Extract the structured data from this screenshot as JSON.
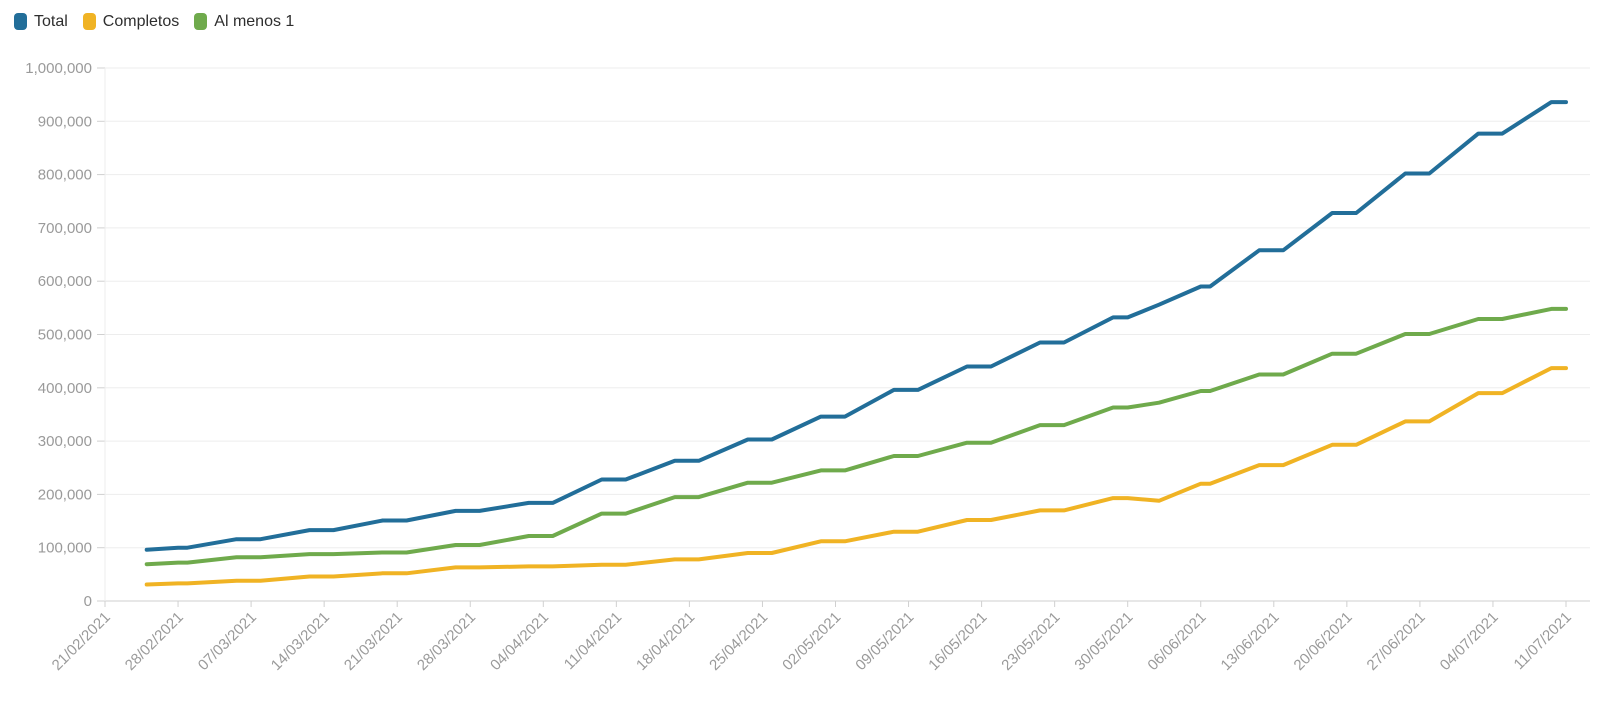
{
  "legend": {
    "items": [
      {
        "label": "Total",
        "color": "#226e99"
      },
      {
        "label": "Completos",
        "color": "#f0b324"
      },
      {
        "label": "Al menos 1",
        "color": "#6faa4c"
      }
    ]
  },
  "chart_data": {
    "type": "line",
    "title": "",
    "xlabel": "",
    "ylabel": "",
    "grid": true,
    "legend_position": "top-left",
    "ylim": [
      0,
      1000000
    ],
    "y_tick_interval": 100000,
    "y_tick_labels": [
      "0",
      "100,000",
      "200,000",
      "300,000",
      "400,000",
      "500,000",
      "600,000",
      "700,000",
      "800,000",
      "900,000",
      "1,000,000"
    ],
    "x_tick_labels": [
      "21/02/2021",
      "28/02/2021",
      "07/03/2021",
      "14/03/2021",
      "21/03/2021",
      "28/03/2021",
      "04/04/2021",
      "11/04/2021",
      "18/04/2021",
      "25/04/2021",
      "02/05/2021",
      "09/05/2021",
      "16/05/2021",
      "23/05/2021",
      "30/05/2021",
      "06/06/2021",
      "13/06/2021",
      "20/06/2021",
      "27/06/2021",
      "04/07/2021",
      "11/07/2021"
    ],
    "x_start_date": "21/02/2021",
    "x_end_date": "11/07/2021",
    "x": [
      "25/02/2021",
      "28/02/2021",
      "07/03/2021",
      "14/03/2021",
      "21/03/2021",
      "28/03/2021",
      "04/04/2021",
      "11/04/2021",
      "18/04/2021",
      "25/04/2021",
      "02/05/2021",
      "09/05/2021",
      "16/05/2021",
      "23/05/2021",
      "30/05/2021",
      "02/06/2021",
      "06/06/2021",
      "13/06/2021",
      "20/06/2021",
      "27/06/2021",
      "04/07/2021",
      "11/07/2021"
    ],
    "series": [
      {
        "name": "Total",
        "color": "#226e99",
        "values": [
          96000,
          100000,
          116000,
          133000,
          151000,
          169000,
          184000,
          228000,
          263000,
          303000,
          346000,
          396000,
          440000,
          485000,
          532000,
          556000,
          590000,
          658000,
          728000,
          802000,
          877000,
          936000
        ]
      },
      {
        "name": "Completos",
        "color": "#f0b324",
        "values": [
          31000,
          33000,
          38000,
          46000,
          52000,
          63000,
          65000,
          68000,
          78000,
          90000,
          112000,
          130000,
          152000,
          170000,
          193000,
          188000,
          220000,
          255000,
          293000,
          337000,
          390000,
          437000
        ]
      },
      {
        "name": "Al menos 1",
        "color": "#6faa4c",
        "values": [
          69000,
          72000,
          82000,
          88000,
          91000,
          105000,
          122000,
          164000,
          195000,
          222000,
          245000,
          272000,
          297000,
          330000,
          363000,
          372000,
          394000,
          425000,
          464000,
          501000,
          529000,
          548000
        ]
      }
    ],
    "colors": {
      "grid_line": "#ededed",
      "axis_line": "#cfcfcf",
      "tick_mark": "#d0d0d0",
      "axis_label": "#9a9a9a"
    }
  }
}
